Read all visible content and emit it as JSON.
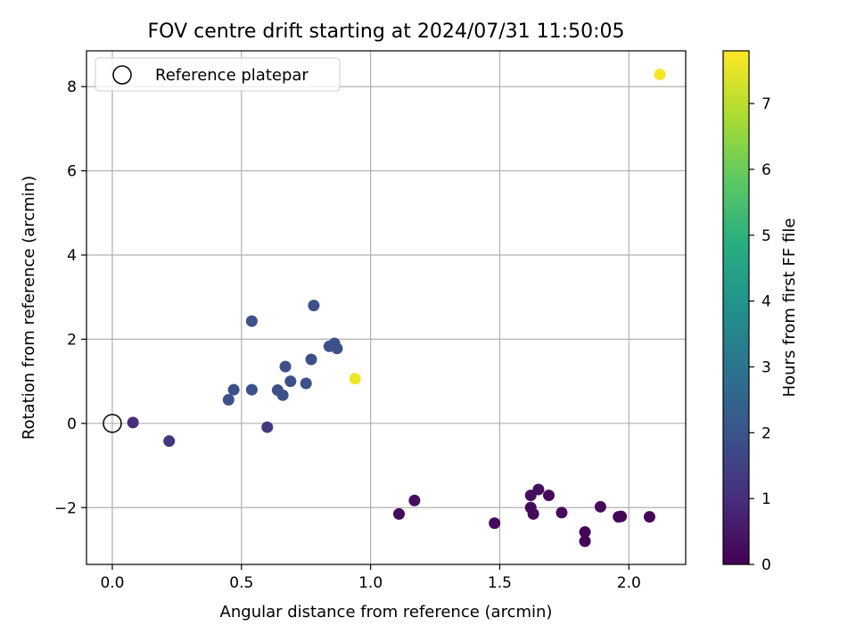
{
  "chart_data": {
    "type": "scatter",
    "title": "FOV centre drift starting at 2024/07/31 11:50:05",
    "xlabel": "Angular distance from reference (arcmin)",
    "ylabel": "Rotation from reference (arcmin)",
    "xlim": [
      -0.1,
      2.22
    ],
    "ylim": [
      -3.35,
      8.85
    ],
    "x_ticks": [
      0.0,
      0.5,
      1.0,
      1.5,
      2.0
    ],
    "x_tick_labels": [
      "0.0",
      "0.5",
      "1.0",
      "1.5",
      "2.0"
    ],
    "y_ticks": [
      -2,
      0,
      2,
      4,
      6,
      8
    ],
    "y_tick_labels": [
      "−2",
      "0",
      "2",
      "4",
      "6",
      "8"
    ],
    "grid": true,
    "legend_position": "top-left",
    "legend": [
      {
        "label": "Reference platepar",
        "marker": "open-circle"
      }
    ],
    "reference_point": {
      "x": 0.0,
      "y": 0.0
    },
    "colorbar": {
      "label": "Hours from first FF file",
      "colormap": "viridis",
      "range": [
        0,
        7.8
      ],
      "ticks": [
        0,
        1,
        2,
        3,
        4,
        5,
        6,
        7
      ],
      "tick_labels": [
        "0",
        "1",
        "2",
        "3",
        "4",
        "5",
        "6",
        "7"
      ]
    },
    "points": [
      {
        "x": 1.11,
        "y": -2.15,
        "hours": 0.2
      },
      {
        "x": 1.17,
        "y": -1.83,
        "hours": 0.3
      },
      {
        "x": 1.48,
        "y": -2.37,
        "hours": 0.2
      },
      {
        "x": 1.62,
        "y": -1.71,
        "hours": 0.3
      },
      {
        "x": 1.62,
        "y": -2.0,
        "hours": 0.2
      },
      {
        "x": 1.63,
        "y": -2.15,
        "hours": 0.2
      },
      {
        "x": 1.65,
        "y": -1.57,
        "hours": 0.3
      },
      {
        "x": 1.69,
        "y": -1.71,
        "hours": 0.2
      },
      {
        "x": 1.74,
        "y": -2.12,
        "hours": 0.2
      },
      {
        "x": 1.83,
        "y": -2.58,
        "hours": 0.1
      },
      {
        "x": 1.83,
        "y": -2.8,
        "hours": 0.1
      },
      {
        "x": 1.89,
        "y": -1.98,
        "hours": 0.2
      },
      {
        "x": 1.96,
        "y": -2.22,
        "hours": 0.1
      },
      {
        "x": 1.97,
        "y": -2.21,
        "hours": 0.1
      },
      {
        "x": 2.08,
        "y": -2.22,
        "hours": 0.1
      },
      {
        "x": 0.08,
        "y": 0.02,
        "hours": 1.0
      },
      {
        "x": 0.22,
        "y": -0.42,
        "hours": 1.2
      },
      {
        "x": 0.6,
        "y": -0.09,
        "hours": 1.3
      },
      {
        "x": 0.45,
        "y": 0.56,
        "hours": 1.9
      },
      {
        "x": 0.47,
        "y": 0.8,
        "hours": 1.9
      },
      {
        "x": 0.54,
        "y": 0.8,
        "hours": 1.9
      },
      {
        "x": 0.54,
        "y": 2.43,
        "hours": 1.9
      },
      {
        "x": 0.64,
        "y": 0.79,
        "hours": 1.9
      },
      {
        "x": 0.66,
        "y": 0.67,
        "hours": 1.9
      },
      {
        "x": 0.67,
        "y": 1.35,
        "hours": 1.9
      },
      {
        "x": 0.69,
        "y": 1.0,
        "hours": 1.9
      },
      {
        "x": 0.75,
        "y": 0.95,
        "hours": 1.9
      },
      {
        "x": 0.77,
        "y": 1.52,
        "hours": 1.9
      },
      {
        "x": 0.78,
        "y": 2.8,
        "hours": 1.9
      },
      {
        "x": 0.84,
        "y": 1.83,
        "hours": 1.9
      },
      {
        "x": 0.86,
        "y": 1.9,
        "hours": 1.9
      },
      {
        "x": 0.87,
        "y": 1.78,
        "hours": 1.9
      },
      {
        "x": 0.94,
        "y": 1.06,
        "hours": 7.6
      },
      {
        "x": 2.12,
        "y": 8.29,
        "hours": 7.7
      }
    ]
  }
}
